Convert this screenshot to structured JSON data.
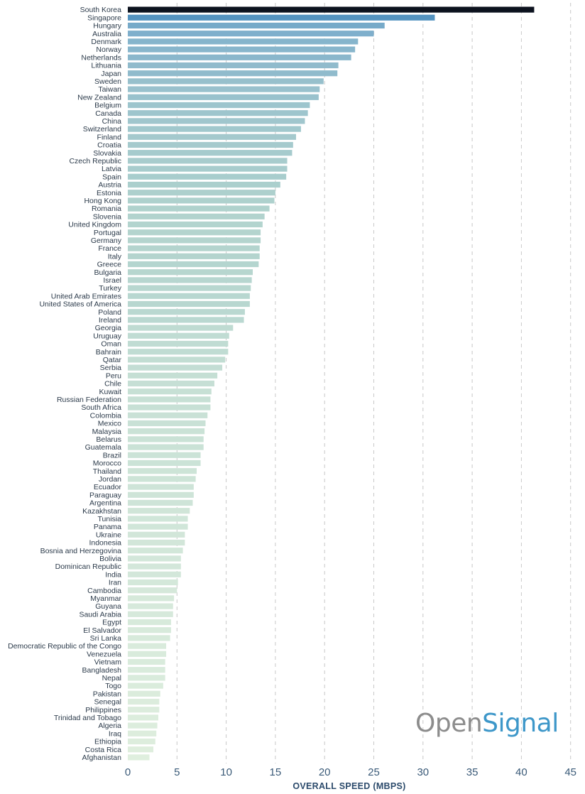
{
  "chart_data": {
    "type": "bar",
    "orientation": "horizontal",
    "xlabel": "OVERALL SPEED (MBPS)",
    "xlim": [
      0,
      45
    ],
    "xticks": [
      0,
      5,
      10,
      15,
      20,
      25,
      30,
      35,
      40,
      45
    ],
    "grid": true,
    "categories": [
      "South Korea",
      "Singapore",
      "Hungary",
      "Australia",
      "Denmark",
      "Norway",
      "Netherlands",
      "Lithuania",
      "Japan",
      "Sweden",
      "Taiwan",
      "New Zealand",
      "Belgium",
      "Canada",
      "China",
      "Switzerland",
      "Finland",
      "Croatia",
      "Slovakia",
      "Czech Republic",
      "Latvia",
      "Spain",
      "Austria",
      "Estonia",
      "Hong Kong",
      "Romania",
      "Slovenia",
      "United Kingdom",
      "Portugal",
      "Germany",
      "France",
      "Italy",
      "Greece",
      "Bulgaria",
      "Israel",
      "Turkey",
      "United Arab Emirates",
      "United States of America",
      "Poland",
      "Ireland",
      "Georgia",
      "Uruguay",
      "Oman",
      "Bahrain",
      "Qatar",
      "Serbia",
      "Peru",
      "Chile",
      "Kuwait",
      "Russian Federation",
      "South Africa",
      "Colombia",
      "Mexico",
      "Malaysia",
      "Belarus",
      "Guatemala",
      "Brazil",
      "Morocco",
      "Thailand",
      "Jordan",
      "Ecuador",
      "Paraguay",
      "Argentina",
      "Kazakhstan",
      "Tunisia",
      "Panama",
      "Ukraine",
      "Indonesia",
      "Bosnia and Herzegovina",
      "Bolivia",
      "Dominican Republic",
      "India",
      "Iran",
      "Cambodia",
      "Myanmar",
      "Guyana",
      "Saudi Arabia",
      "Egypt",
      "El Salvador",
      "Sri Lanka",
      "Democratic Republic of the Congo",
      "Venezuela",
      "Vietnam",
      "Bangladesh",
      "Nepal",
      "Togo",
      "Pakistan",
      "Senegal",
      "Philippines",
      "Trinidad and Tobago",
      "Algeria",
      "Iraq",
      "Ethiopia",
      "Costa Rica",
      "Afghanistan"
    ],
    "values": [
      41.3,
      31.2,
      26.1,
      25.0,
      23.4,
      23.1,
      22.7,
      21.4,
      21.3,
      19.9,
      19.5,
      19.4,
      18.5,
      18.3,
      18.0,
      17.6,
      17.1,
      16.8,
      16.7,
      16.2,
      16.2,
      16.1,
      15.5,
      15.0,
      14.9,
      14.4,
      13.9,
      13.7,
      13.5,
      13.5,
      13.4,
      13.4,
      13.3,
      12.7,
      12.6,
      12.5,
      12.4,
      12.4,
      11.9,
      11.8,
      10.7,
      10.3,
      10.2,
      10.2,
      9.9,
      9.6,
      9.1,
      8.8,
      8.5,
      8.4,
      8.4,
      8.1,
      7.9,
      7.8,
      7.7,
      7.7,
      7.4,
      7.4,
      7.0,
      6.9,
      6.7,
      6.7,
      6.6,
      6.3,
      6.1,
      6.1,
      5.8,
      5.8,
      5.6,
      5.4,
      5.4,
      5.4,
      5.1,
      5.0,
      4.7,
      4.6,
      4.6,
      4.4,
      4.4,
      4.3,
      3.9,
      3.9,
      3.8,
      3.8,
      3.8,
      3.6,
      3.3,
      3.2,
      3.2,
      3.1,
      3.0,
      2.9,
      2.8,
      2.6,
      2.2
    ]
  },
  "logo": {
    "part1": "Open",
    "part2": "Signal"
  }
}
